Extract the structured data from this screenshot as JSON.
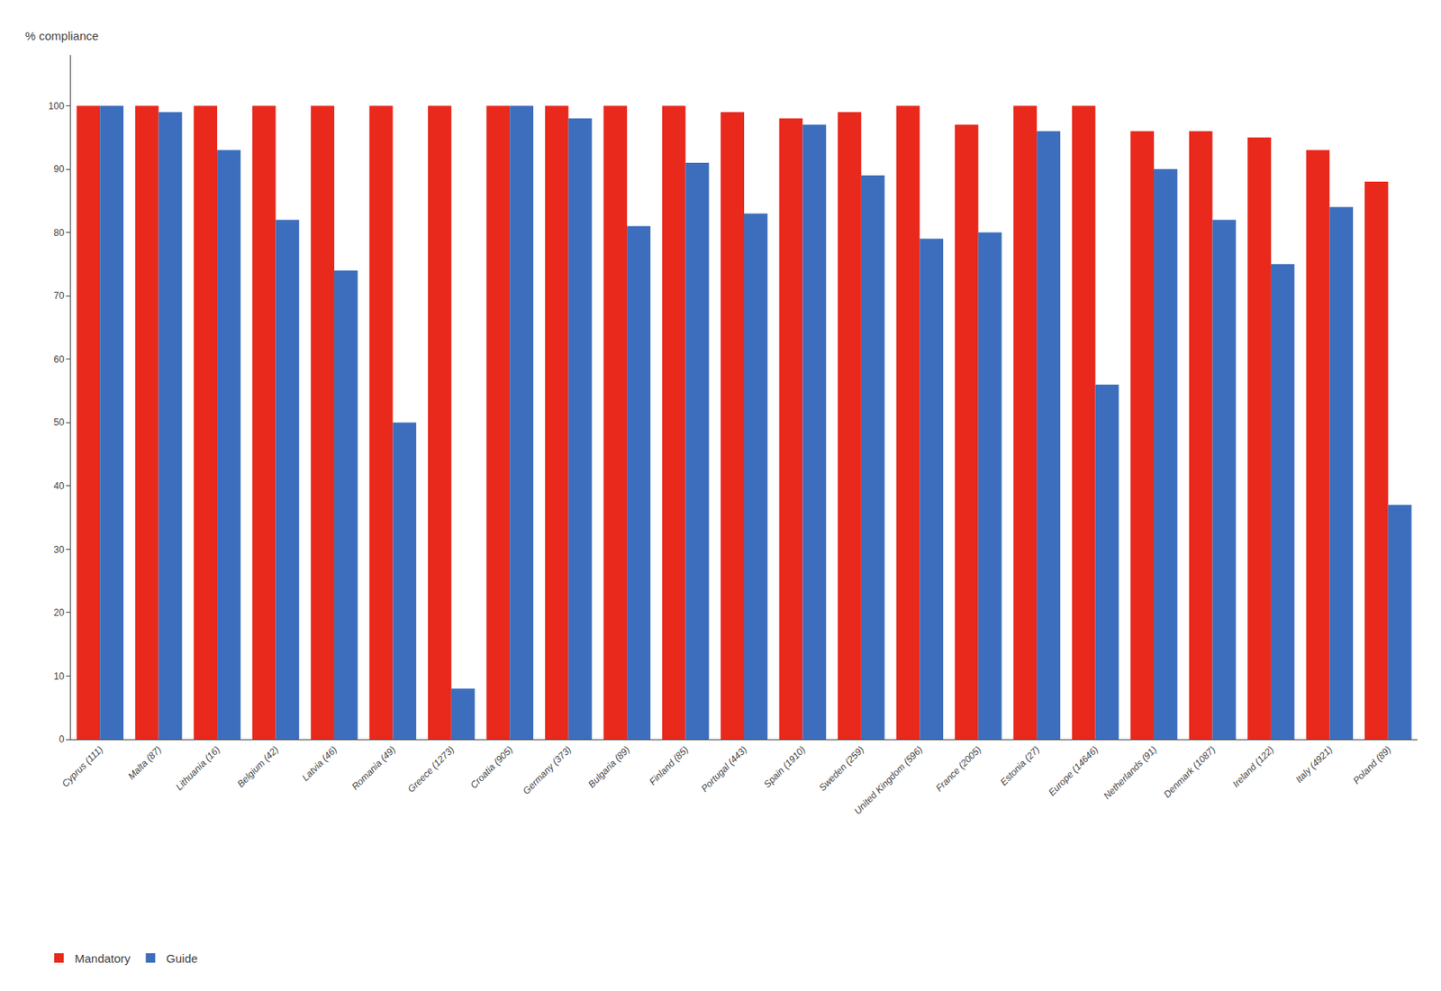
{
  "chart_data": {
    "type": "bar",
    "ylabel": "% compliance",
    "categories": [
      "Cyprus (111)",
      "Malta (87)",
      "Lithuania (16)",
      "Belgium (42)",
      "Latvia (46)",
      "Romania (49)",
      "Greece (1273)",
      "Croatia (905)",
      "Germany (373)",
      "Bulgaria (89)",
      "Finland (85)",
      "Portugal (443)",
      "Spain (1910)",
      "Sweden (259)",
      "United Kingdom (596)",
      "France (2005)",
      "Estonia (27)",
      "Europe (14646)",
      "Netherlands (91)",
      "Denmark (1087)",
      "Ireland (122)",
      "Italy (4921)",
      "Poland (89)"
    ],
    "series": [
      {
        "name": "Mandatory",
        "color": "#e8291c",
        "values": [
          100,
          100,
          100,
          100,
          100,
          100,
          100,
          100,
          100,
          100,
          100,
          99,
          98,
          99,
          100,
          97,
          100,
          100,
          96,
          96,
          95,
          93,
          88
        ]
      },
      {
        "name": "Guide",
        "color": "#3c6ebd",
        "values": [
          100,
          99,
          93,
          82,
          74,
          50,
          8,
          100,
          98,
          81,
          91,
          83,
          97,
          89,
          79,
          80,
          96,
          56,
          90,
          82,
          75,
          84,
          37
        ]
      }
    ],
    "ylim": [
      0,
      108
    ],
    "yticks": [
      0,
      10,
      20,
      30,
      40,
      50,
      60,
      70,
      80,
      90,
      100
    ],
    "grid": false,
    "legend": "lower left"
  }
}
